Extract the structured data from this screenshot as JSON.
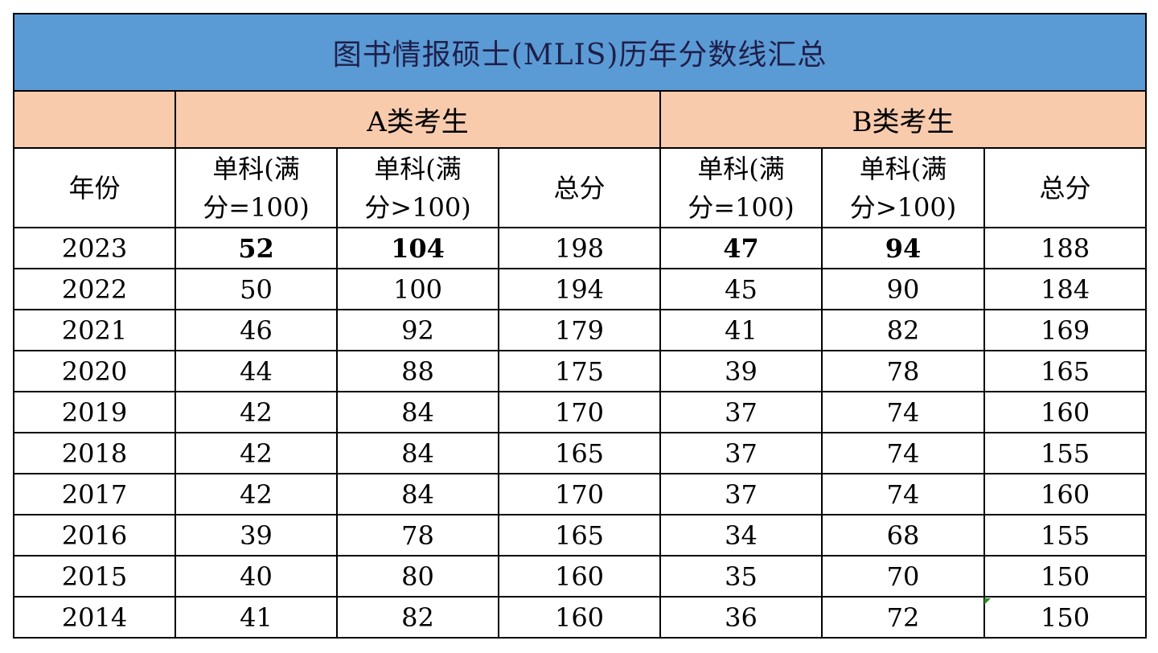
{
  "title": "图书情报硕士(MLIS)历年分数线汇总",
  "groups": {
    "a": "A类考生",
    "b": "B类考生"
  },
  "headers": {
    "year": "年份",
    "single_100_line1": "单科(满",
    "single_100_line2": "分=100)",
    "single_gt100_line1": "单科(满",
    "single_gt100_line2": "分>100)",
    "total": "总分"
  },
  "rows": [
    {
      "year": "2023",
      "a_single": "52",
      "a_single_gt": "104",
      "a_total": "198",
      "b_single": "47",
      "b_single_gt": "94",
      "b_total": "188"
    },
    {
      "year": "2022",
      "a_single": "50",
      "a_single_gt": "100",
      "a_total": "194",
      "b_single": "45",
      "b_single_gt": "90",
      "b_total": "184"
    },
    {
      "year": "2021",
      "a_single": "46",
      "a_single_gt": "92",
      "a_total": "179",
      "b_single": "41",
      "b_single_gt": "82",
      "b_total": "169"
    },
    {
      "year": "2020",
      "a_single": "44",
      "a_single_gt": "88",
      "a_total": "175",
      "b_single": "39",
      "b_single_gt": "78",
      "b_total": "165"
    },
    {
      "year": "2019",
      "a_single": "42",
      "a_single_gt": "84",
      "a_total": "170",
      "b_single": "37",
      "b_single_gt": "74",
      "b_total": "160"
    },
    {
      "year": "2018",
      "a_single": "42",
      "a_single_gt": "84",
      "a_total": "165",
      "b_single": "37",
      "b_single_gt": "74",
      "b_total": "155"
    },
    {
      "year": "2017",
      "a_single": "42",
      "a_single_gt": "84",
      "a_total": "170",
      "b_single": "37",
      "b_single_gt": "74",
      "b_total": "160"
    },
    {
      "year": "2016",
      "a_single": "39",
      "a_single_gt": "78",
      "a_total": "165",
      "b_single": "34",
      "b_single_gt": "68",
      "b_total": "155"
    },
    {
      "year": "2015",
      "a_single": "40",
      "a_single_gt": "80",
      "a_total": "160",
      "b_single": "35",
      "b_single_gt": "70",
      "b_total": "150"
    },
    {
      "year": "2014",
      "a_single": "41",
      "a_single_gt": "82",
      "a_total": "160",
      "b_single": "36",
      "b_single_gt": "72",
      "b_total": "150"
    }
  ],
  "colors": {
    "title_bg": "#5b9bd5",
    "group_bg": "#f8cbad",
    "corner_mark": "#2e8b2e"
  }
}
